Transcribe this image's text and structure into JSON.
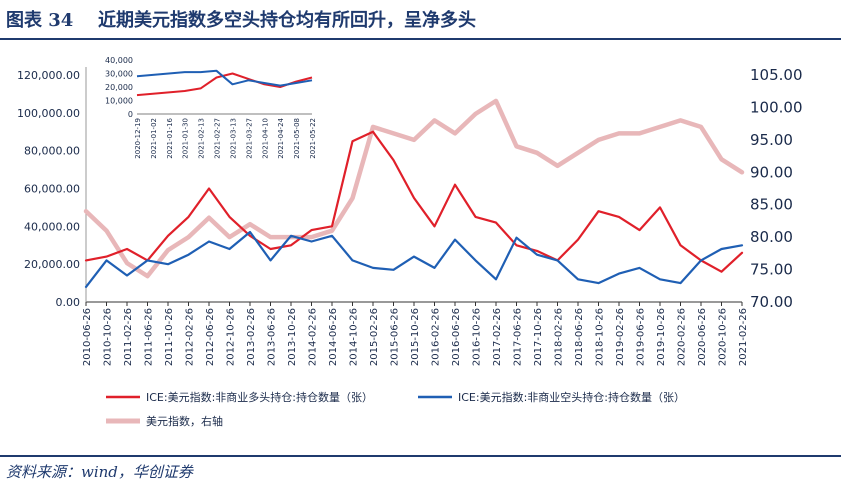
{
  "header": {
    "figure_label": "图表 34",
    "title": "近期美元指数多空头持仓均有所回升，呈净多头"
  },
  "footer": {
    "source": "资料来源：wind，华创证券"
  },
  "colors": {
    "long": "#e0202a",
    "short": "#1f5fb4",
    "dxy": "#e8b7b9",
    "rule": "#1f3a6e"
  },
  "chart_data": {
    "type": "line",
    "title": "",
    "left_axis": {
      "range": [
        0,
        120000
      ],
      "ticks": [
        0,
        20000,
        40000,
        60000,
        80000,
        100000,
        120000
      ],
      "tick_labels": [
        "0.00",
        "20,000.00",
        "40,000.00",
        "60,000.00",
        "80,000.00",
        "100,000.00",
        "120,000.00"
      ]
    },
    "right_axis": {
      "range": [
        70,
        105
      ],
      "ticks": [
        70,
        75,
        80,
        85,
        90,
        95,
        100,
        105
      ],
      "tick_labels": [
        "70.00",
        "75.00",
        "80.00",
        "85.00",
        "90.00",
        "95.00",
        "100.00",
        "105.00"
      ]
    },
    "x_tick_labels": [
      "2010-06-26",
      "2010-10-26",
      "2011-02-26",
      "2011-06-26",
      "2011-10-26",
      "2012-02-26",
      "2012-06-26",
      "2012-10-26",
      "2013-02-26",
      "2013-06-26",
      "2013-10-26",
      "2014-02-26",
      "2014-06-26",
      "2014-10-26",
      "2015-02-26",
      "2015-06-26",
      "2015-10-26",
      "2016-02-26",
      "2016-06-26",
      "2016-10-26",
      "2017-02-26",
      "2017-06-26",
      "2017-10-26",
      "2018-02-26",
      "2018-06-26",
      "2018-10-26",
      "2019-02-26",
      "2019-06-26",
      "2019-10-26",
      "2020-02-26",
      "2020-06-26",
      "2020-10-26",
      "2021-02-26"
    ],
    "x_index": [
      0,
      1,
      2,
      3,
      4,
      5,
      6,
      7,
      8,
      9,
      10,
      11,
      12,
      13,
      14,
      15,
      16,
      17,
      18,
      19,
      20,
      21,
      22,
      23,
      24,
      25,
      26,
      27,
      28,
      29,
      30,
      31,
      32
    ],
    "series": [
      {
        "name": "ICE:美元指数:非商业多头持仓:持仓数量（张）",
        "axis": "left",
        "values": [
          22000,
          24000,
          28000,
          22000,
          35000,
          45000,
          60000,
          45000,
          35000,
          28000,
          30000,
          38000,
          40000,
          85000,
          90000,
          75000,
          55000,
          40000,
          62000,
          45000,
          42000,
          30000,
          27000,
          22000,
          33000,
          48000,
          45000,
          38000,
          50000,
          30000,
          22000,
          16000,
          26000
        ]
      },
      {
        "name": "ICE:美元指数:非商业空头持仓:持仓数量（张）",
        "axis": "left",
        "values": [
          8000,
          22000,
          14000,
          22000,
          20000,
          25000,
          32000,
          28000,
          37000,
          22000,
          35000,
          32000,
          35000,
          22000,
          18000,
          17000,
          24000,
          18000,
          33000,
          22000,
          12000,
          34000,
          25000,
          22000,
          12000,
          10000,
          15000,
          18000,
          12000,
          10000,
          22000,
          28000,
          30000
        ]
      },
      {
        "name": "美元指数，右轴",
        "axis": "right",
        "values": [
          84,
          81,
          76,
          74,
          78,
          80,
          83,
          80,
          82,
          80,
          80,
          80,
          81,
          86,
          97,
          96,
          95,
          98,
          96,
          99,
          101,
          94,
          93,
          91,
          93,
          95,
          96,
          96,
          97,
          98,
          97,
          92,
          90
        ]
      }
    ],
    "inset": {
      "type": "line",
      "y_range": [
        0,
        40000
      ],
      "y_ticks": [
        0,
        10000,
        20000,
        30000,
        40000
      ],
      "y_tick_labels": [
        "0",
        "10,000",
        "20,000",
        "30,000",
        "40,000"
      ],
      "x_tick_labels": [
        "2020-12-19",
        "2021-01-02",
        "2021-01-16",
        "2021-01-30",
        "2021-02-13",
        "2021-02-27",
        "2021-03-13",
        "2021-03-27",
        "2021-04-10",
        "2021-04-24",
        "2021-05-08",
        "2021-05-22"
      ],
      "x_index": [
        0,
        1,
        2,
        3,
        4,
        5,
        6,
        7,
        8,
        9,
        10,
        11
      ],
      "series": [
        {
          "name": "多头",
          "values": [
            14000,
            15000,
            16000,
            17000,
            19000,
            27000,
            30000,
            26000,
            22000,
            20000,
            24000,
            27000
          ]
        },
        {
          "name": "空头",
          "values": [
            28000,
            29000,
            30000,
            31000,
            31000,
            32000,
            22000,
            25000,
            23000,
            21000,
            23000,
            25000
          ]
        }
      ]
    }
  }
}
